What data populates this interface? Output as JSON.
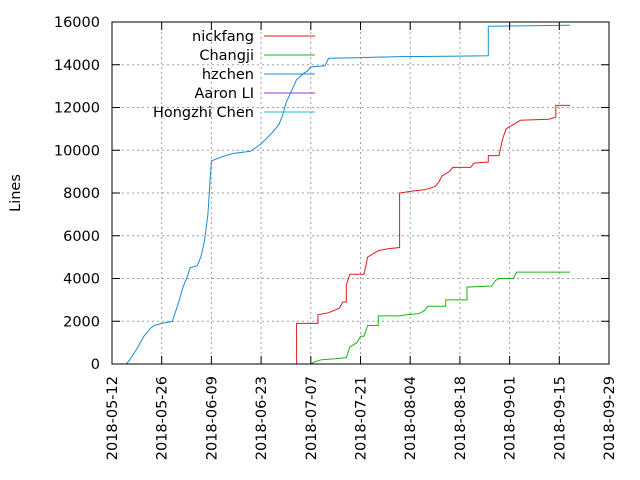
{
  "chart_data": {
    "type": "line",
    "ylabel": "Lines",
    "xlabel": "",
    "ylim": [
      0,
      16000
    ],
    "xlim": [
      "2018-05-12",
      "2018-09-29"
    ],
    "grid": true,
    "legend_position": "top-left",
    "y_ticks": [
      "0",
      "2000",
      "4000",
      "6000",
      "8000",
      "10000",
      "12000",
      "14000",
      "16000"
    ],
    "x_ticks": [
      "2018-05-12",
      "2018-05-26",
      "2018-06-09",
      "2018-06-23",
      "2018-07-07",
      "2018-07-21",
      "2018-08-04",
      "2018-08-18",
      "2018-09-01",
      "2018-09-15",
      "2018-09-29"
    ],
    "series": [
      {
        "name": "nickfang",
        "color": "#e41a1c",
        "points": [
          [
            "2018-07-03",
            0
          ],
          [
            "2018-07-03",
            1900
          ],
          [
            "2018-07-09",
            1900
          ],
          [
            "2018-07-09",
            2300
          ],
          [
            "2018-07-12",
            2400
          ],
          [
            "2018-07-15",
            2600
          ],
          [
            "2018-07-16",
            2900
          ],
          [
            "2018-07-17",
            2900
          ],
          [
            "2018-07-17",
            3700
          ],
          [
            "2018-07-18",
            4200
          ],
          [
            "2018-07-22",
            4200
          ],
          [
            "2018-07-23",
            5000
          ],
          [
            "2018-07-26",
            5300
          ],
          [
            "2018-07-29",
            5400
          ],
          [
            "2018-08-01",
            5450
          ],
          [
            "2018-08-01",
            8000
          ],
          [
            "2018-08-05",
            8100
          ],
          [
            "2018-08-08",
            8150
          ],
          [
            "2018-08-11",
            8300
          ],
          [
            "2018-08-12",
            8500
          ],
          [
            "2018-08-13",
            8800
          ],
          [
            "2018-08-15",
            9000
          ],
          [
            "2018-08-16",
            9200
          ],
          [
            "2018-08-21",
            9200
          ],
          [
            "2018-08-22",
            9400
          ],
          [
            "2018-08-26",
            9450
          ],
          [
            "2018-08-26",
            9750
          ],
          [
            "2018-08-29",
            9750
          ],
          [
            "2018-08-30",
            10500
          ],
          [
            "2018-08-31",
            11000
          ],
          [
            "2018-09-02",
            11200
          ],
          [
            "2018-09-04",
            11400
          ],
          [
            "2018-09-12",
            11450
          ],
          [
            "2018-09-14",
            11550
          ],
          [
            "2018-09-14",
            12100
          ],
          [
            "2018-09-18",
            12100
          ]
        ]
      },
      {
        "name": "Changji",
        "color": "#1ab31a",
        "points": [
          [
            "2018-07-07",
            0
          ],
          [
            "2018-07-08",
            100
          ],
          [
            "2018-07-10",
            200
          ],
          [
            "2018-07-14",
            250
          ],
          [
            "2018-07-17",
            300
          ],
          [
            "2018-07-18",
            800
          ],
          [
            "2018-07-20",
            1000
          ],
          [
            "2018-07-21",
            1300
          ],
          [
            "2018-07-22",
            1300
          ],
          [
            "2018-07-23",
            1800
          ],
          [
            "2018-07-26",
            1800
          ],
          [
            "2018-07-26",
            2250
          ],
          [
            "2018-08-01",
            2250
          ],
          [
            "2018-08-03",
            2300
          ],
          [
            "2018-08-06",
            2350
          ],
          [
            "2018-08-07",
            2400
          ],
          [
            "2018-08-08",
            2500
          ],
          [
            "2018-08-09",
            2700
          ],
          [
            "2018-08-14",
            2700
          ],
          [
            "2018-08-14",
            3000
          ],
          [
            "2018-08-20",
            3000
          ],
          [
            "2018-08-20",
            3600
          ],
          [
            "2018-08-27",
            3650
          ],
          [
            "2018-08-28",
            3900
          ],
          [
            "2018-08-29",
            4000
          ],
          [
            "2018-09-02",
            4000
          ],
          [
            "2018-09-03",
            4300
          ],
          [
            "2018-09-18",
            4300
          ]
        ]
      },
      {
        "name": "hzchen",
        "color": "#1a8ccc",
        "points": [
          [
            "2018-05-16",
            0
          ],
          [
            "2018-05-17",
            200
          ],
          [
            "2018-05-19",
            700
          ],
          [
            "2018-05-21",
            1300
          ],
          [
            "2018-05-23",
            1700
          ],
          [
            "2018-05-24",
            1800
          ],
          [
            "2018-05-26",
            1900
          ],
          [
            "2018-05-29",
            2000
          ],
          [
            "2018-05-30",
            2500
          ],
          [
            "2018-05-31",
            3000
          ],
          [
            "2018-06-01",
            3600
          ],
          [
            "2018-06-02",
            4000
          ],
          [
            "2018-06-03",
            4500
          ],
          [
            "2018-06-05",
            4600
          ],
          [
            "2018-06-06",
            5000
          ],
          [
            "2018-06-07",
            5700
          ],
          [
            "2018-06-08",
            7000
          ],
          [
            "2018-06-09",
            9500
          ],
          [
            "2018-06-12",
            9700
          ],
          [
            "2018-06-15",
            9850
          ],
          [
            "2018-06-20",
            9950
          ],
          [
            "2018-06-23",
            10300
          ],
          [
            "2018-06-26",
            10800
          ],
          [
            "2018-06-28",
            11200
          ],
          [
            "2018-06-29",
            11600
          ],
          [
            "2018-06-30",
            12200
          ],
          [
            "2018-07-03",
            13300
          ],
          [
            "2018-07-05",
            13600
          ],
          [
            "2018-07-06",
            13700
          ],
          [
            "2018-07-07",
            13900
          ],
          [
            "2018-07-11",
            13950
          ],
          [
            "2018-07-12",
            14300
          ],
          [
            "2018-07-20",
            14330
          ],
          [
            "2018-08-01",
            14380
          ],
          [
            "2018-08-15",
            14400
          ],
          [
            "2018-08-26",
            14420
          ],
          [
            "2018-08-26",
            15800
          ],
          [
            "2018-09-18",
            15850
          ]
        ]
      },
      {
        "name": "Aaron LI",
        "color": "#9933cc",
        "points": []
      },
      {
        "name": "Hongzhi Chen",
        "color": "#1ac2d9",
        "points": []
      }
    ]
  }
}
